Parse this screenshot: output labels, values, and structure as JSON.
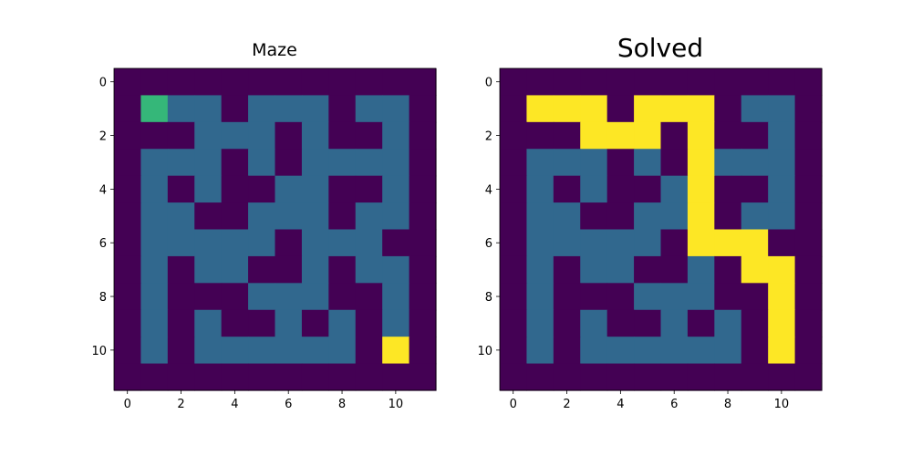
{
  "chart_data": [
    {
      "type": "heatmap",
      "title": "Maze",
      "xlim": [
        -0.5,
        11.5
      ],
      "ylim": [
        11.5,
        -0.5
      ],
      "xticks": [
        0,
        2,
        4,
        6,
        8,
        10
      ],
      "yticks": [
        0,
        2,
        4,
        6,
        8,
        10
      ],
      "colormap": {
        "0": "#440154",
        "1": "#31688e",
        "2": "#35b779",
        "3": "#fde725"
      },
      "grid": [
        [
          0,
          0,
          0,
          0,
          0,
          0,
          0,
          0,
          0,
          0,
          0,
          0
        ],
        [
          0,
          2,
          1,
          1,
          0,
          1,
          1,
          1,
          0,
          1,
          1,
          0
        ],
        [
          0,
          0,
          0,
          1,
          1,
          1,
          0,
          1,
          0,
          0,
          1,
          0
        ],
        [
          0,
          1,
          1,
          1,
          0,
          1,
          0,
          1,
          1,
          1,
          1,
          0
        ],
        [
          0,
          1,
          0,
          1,
          0,
          0,
          1,
          1,
          0,
          0,
          1,
          0
        ],
        [
          0,
          1,
          1,
          0,
          0,
          1,
          1,
          1,
          0,
          1,
          1,
          0
        ],
        [
          0,
          1,
          1,
          1,
          1,
          1,
          0,
          1,
          1,
          1,
          0,
          0
        ],
        [
          0,
          1,
          0,
          1,
          1,
          0,
          0,
          1,
          0,
          1,
          1,
          0
        ],
        [
          0,
          1,
          0,
          0,
          0,
          1,
          1,
          1,
          0,
          0,
          1,
          0
        ],
        [
          0,
          1,
          0,
          1,
          0,
          0,
          1,
          0,
          1,
          0,
          1,
          0
        ],
        [
          0,
          1,
          0,
          1,
          1,
          1,
          1,
          1,
          1,
          0,
          3,
          0
        ],
        [
          0,
          0,
          0,
          0,
          0,
          0,
          0,
          0,
          0,
          0,
          0,
          0
        ]
      ]
    },
    {
      "type": "heatmap",
      "title": "Solved",
      "xlim": [
        -0.5,
        11.5
      ],
      "ylim": [
        11.5,
        -0.5
      ],
      "xticks": [
        0,
        2,
        4,
        6,
        8,
        10
      ],
      "yticks": [
        0,
        2,
        4,
        6,
        8,
        10
      ],
      "colormap": {
        "0": "#440154",
        "1": "#31688e",
        "3": "#fde725"
      },
      "grid": [
        [
          0,
          0,
          0,
          0,
          0,
          0,
          0,
          0,
          0,
          0,
          0,
          0
        ],
        [
          0,
          3,
          3,
          3,
          0,
          3,
          3,
          3,
          0,
          1,
          1,
          0
        ],
        [
          0,
          0,
          0,
          3,
          3,
          3,
          0,
          3,
          0,
          0,
          1,
          0
        ],
        [
          0,
          1,
          1,
          1,
          0,
          1,
          0,
          3,
          1,
          1,
          1,
          0
        ],
        [
          0,
          1,
          0,
          1,
          0,
          0,
          1,
          3,
          0,
          0,
          1,
          0
        ],
        [
          0,
          1,
          1,
          0,
          0,
          1,
          1,
          3,
          0,
          1,
          1,
          0
        ],
        [
          0,
          1,
          1,
          1,
          1,
          1,
          0,
          3,
          3,
          3,
          0,
          0
        ],
        [
          0,
          1,
          0,
          1,
          1,
          0,
          0,
          1,
          0,
          3,
          3,
          0
        ],
        [
          0,
          1,
          0,
          0,
          0,
          1,
          1,
          1,
          0,
          0,
          3,
          0
        ],
        [
          0,
          1,
          0,
          1,
          0,
          0,
          1,
          0,
          1,
          0,
          3,
          0
        ],
        [
          0,
          1,
          0,
          1,
          1,
          1,
          1,
          1,
          1,
          0,
          3,
          0
        ],
        [
          0,
          0,
          0,
          0,
          0,
          0,
          0,
          0,
          0,
          0,
          0,
          0
        ]
      ]
    }
  ]
}
